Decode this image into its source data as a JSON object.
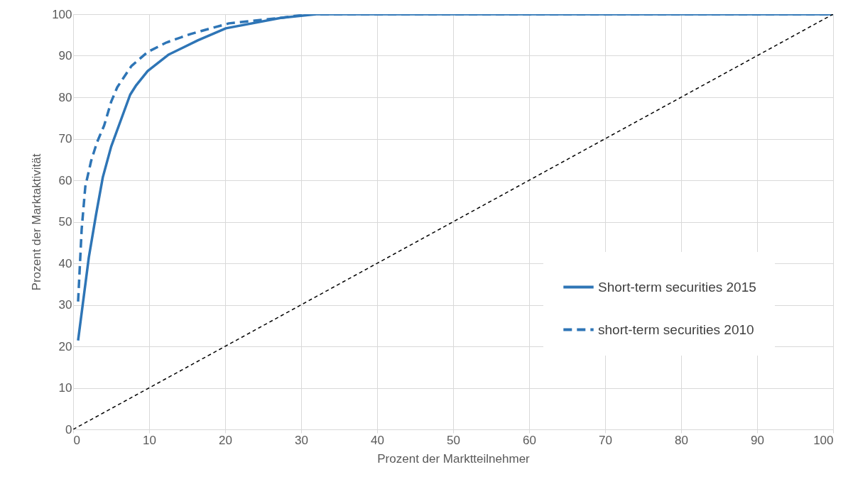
{
  "chart_data": {
    "type": "line",
    "xlabel": "Prozent der Marktteilnehmer",
    "ylabel": "Prozent der Marktaktivität",
    "xlim": [
      0,
      100
    ],
    "ylim": [
      0,
      100
    ],
    "xticks": [
      0,
      10,
      20,
      30,
      40,
      50,
      60,
      70,
      80,
      90,
      100
    ],
    "yticks": [
      0,
      10,
      20,
      30,
      40,
      50,
      60,
      70,
      80,
      90,
      100
    ],
    "grid": true,
    "legend": "right",
    "series": [
      {
        "name": "Short-term securities 2015",
        "color": "#2e75b6",
        "line_style": "solid",
        "x": [
          0.65,
          2.06,
          3.0,
          3.9,
          5.0,
          6.26,
          7.5,
          8.3,
          9.8,
          12.6,
          16.4,
          20.1,
          27.3,
          32,
          100
        ],
        "values": [
          21.4,
          41.4,
          51.6,
          60.7,
          68.1,
          74.4,
          80.6,
          82.9,
          86.3,
          90.3,
          93.7,
          96.6,
          99.1,
          100,
          100
        ]
      },
      {
        "name": "short-term securities 2010",
        "color": "#2e75b6",
        "line_style": "dashed",
        "x": [
          0.65,
          1.12,
          1.6,
          2.37,
          3.15,
          4.08,
          5.0,
          5.8,
          7.66,
          9.8,
          12.3,
          15.4,
          20.5,
          27.3,
          31,
          100
        ],
        "values": [
          30.8,
          48.2,
          58.5,
          64.7,
          69.2,
          73.2,
          78.9,
          82.4,
          87.5,
          90.9,
          93.2,
          95.2,
          97.8,
          99.1,
          100,
          100
        ]
      },
      {
        "color": "#000000",
        "line_style": "dotted",
        "x": [
          0,
          100
        ],
        "values": [
          0,
          100
        ]
      }
    ]
  }
}
